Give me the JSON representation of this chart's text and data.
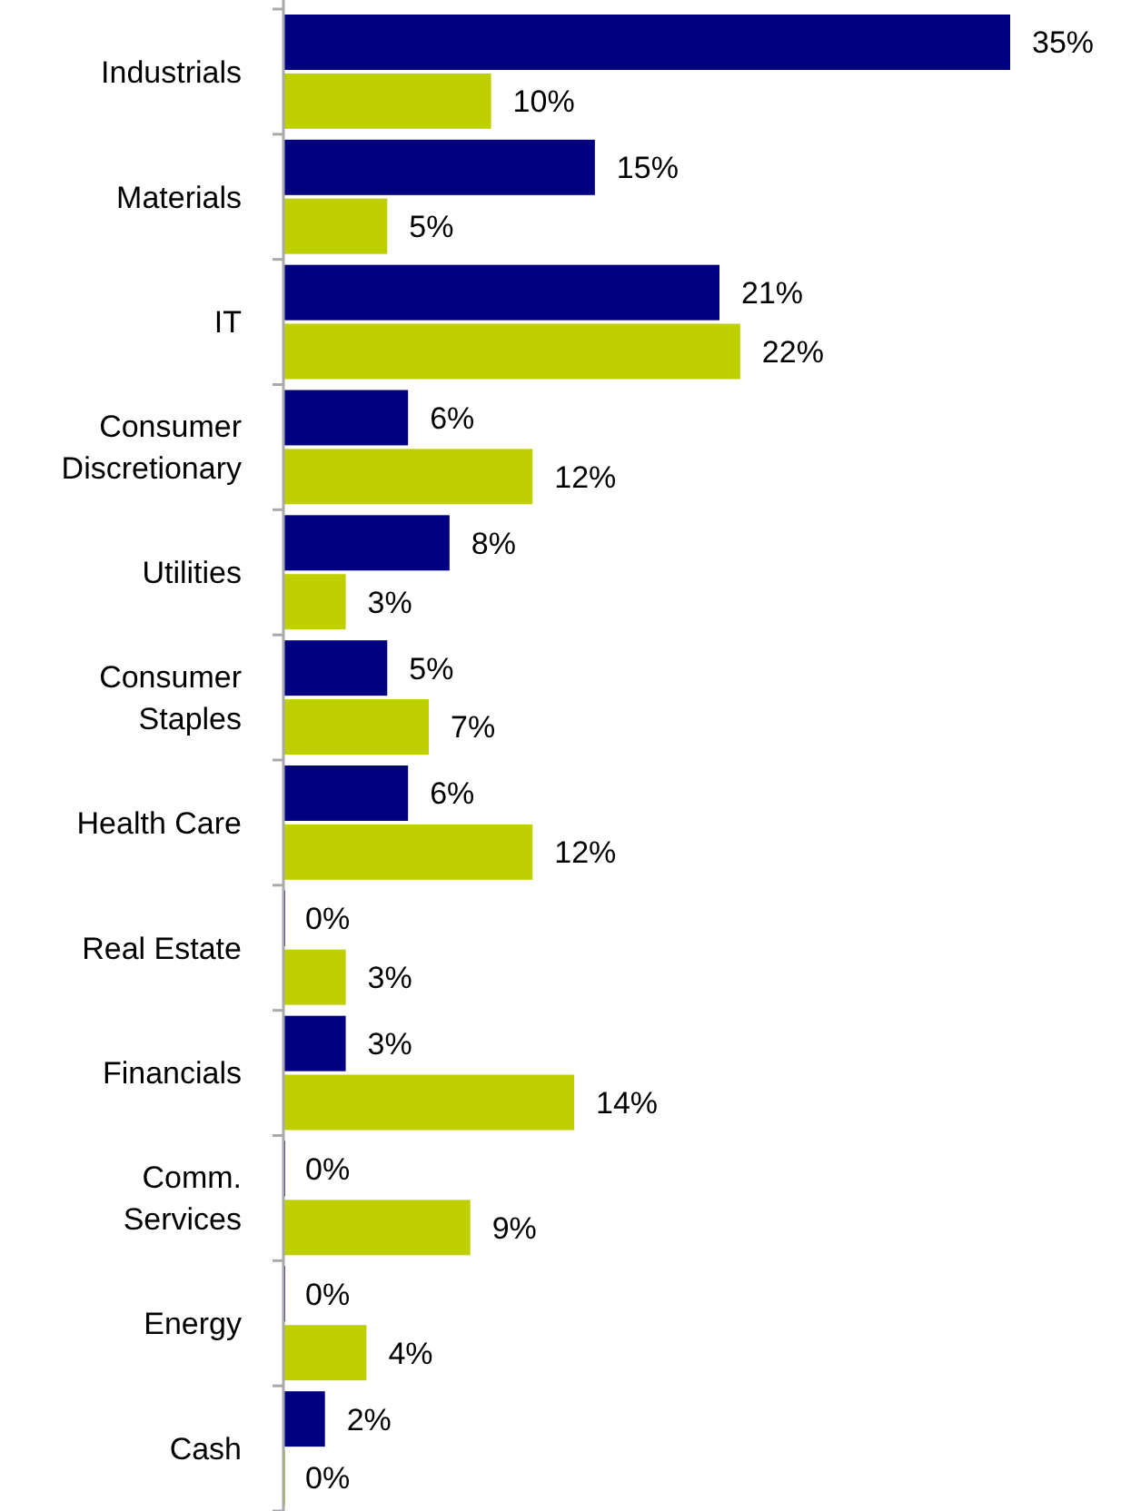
{
  "chart_data": {
    "type": "bar",
    "orientation": "horizontal",
    "categories": [
      "Industrials",
      "Materials",
      "IT",
      "Consumer Discretionary",
      "Utilities",
      "Consumer Staples",
      "Health Care",
      "Real Estate",
      "Financials",
      "Comm. Services",
      "Energy",
      "Cash"
    ],
    "series": [
      {
        "color": "#000080",
        "values": [
          35,
          15,
          21,
          6,
          8,
          5,
          6,
          0,
          3,
          0,
          0,
          2
        ],
        "value_labels": [
          "35%",
          "15%",
          "21%",
          "6%",
          "8%",
          "5%",
          "6%",
          "0%",
          "3%",
          "0%",
          "0%",
          "2%"
        ]
      },
      {
        "color": "#bfd000",
        "values": [
          10,
          5,
          22,
          12,
          3,
          7,
          12,
          3,
          14,
          9,
          4,
          0
        ],
        "value_labels": [
          "10%",
          "5%",
          "22%",
          "12%",
          "3%",
          "7%",
          "12%",
          "3%",
          "14%",
          "9%",
          "4%",
          "0%"
        ]
      }
    ]
  }
}
